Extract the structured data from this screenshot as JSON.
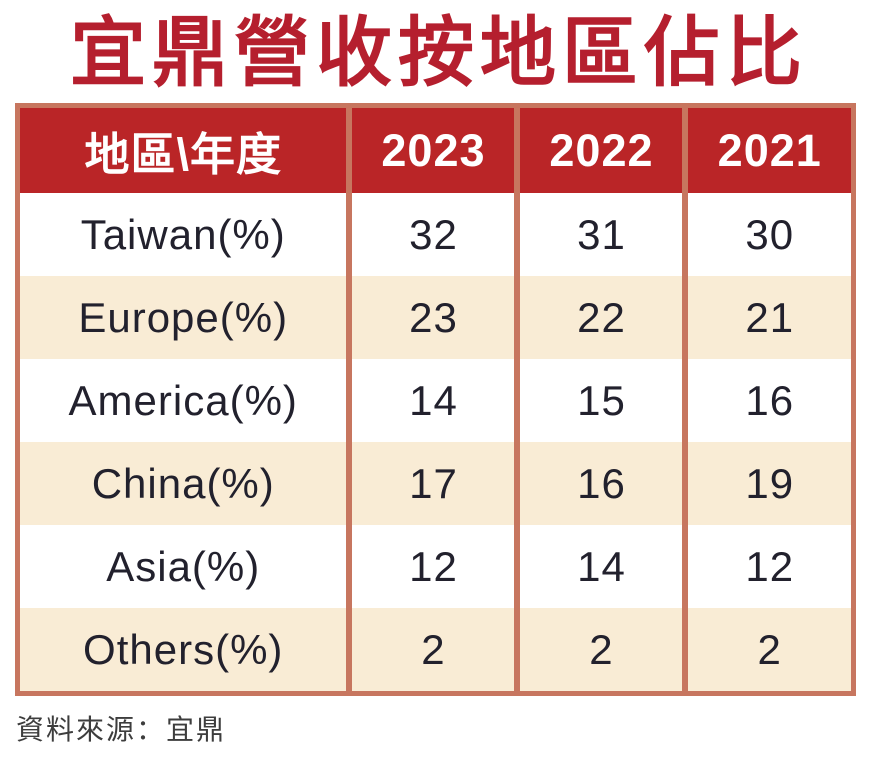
{
  "title": "宜鼎營收按地區佔比",
  "source_note": "資料來源：宜鼎",
  "colors": {
    "title_red": "#b51f2e",
    "header_red": "#ba2527",
    "border_salmon": "#c7765f",
    "row_peach": "#f9ecd5",
    "row_white": "#ffffff",
    "data_text": "#22212d",
    "source_text": "#3d3d3d"
  },
  "chart_data": {
    "type": "table",
    "title": "宜鼎營收按地區佔比",
    "columns": [
      "地區\\年度",
      "2023",
      "2022",
      "2021"
    ],
    "rows": [
      {
        "label": "Taiwan(%)",
        "values": [
          32,
          31,
          30
        ]
      },
      {
        "label": "Europe(%)",
        "values": [
          23,
          22,
          21
        ]
      },
      {
        "label": "America(%)",
        "values": [
          14,
          15,
          16
        ]
      },
      {
        "label": "China(%)",
        "values": [
          17,
          16,
          19
        ]
      },
      {
        "label": "Asia(%)",
        "values": [
          12,
          14,
          12
        ]
      },
      {
        "label": "Others(%)",
        "values": [
          2,
          2,
          2
        ]
      }
    ]
  }
}
